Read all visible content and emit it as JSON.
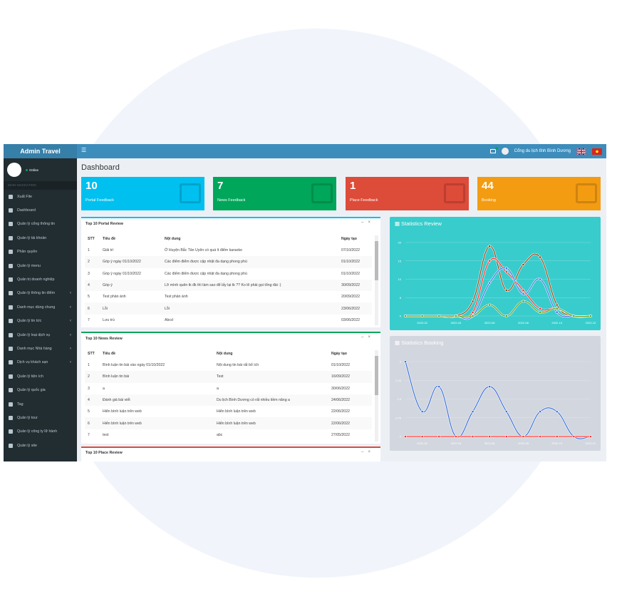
{
  "header": {
    "app_title": "Admin Travel",
    "user_name": "Cổng du lịch tỉnh Bình Dương",
    "menu_icon": "hamburger-icon",
    "mail_icon": "envelope-icon",
    "flags": [
      "uk-flag",
      "vn-flag"
    ]
  },
  "sidebar": {
    "status": "Online",
    "nav_header": "MAIN NAVIGATION",
    "items": [
      {
        "label": "Xuất File",
        "icon": "export-icon",
        "has_children": false
      },
      {
        "label": "Dashboard",
        "icon": "home-icon",
        "has_children": false
      },
      {
        "label": "Quản lý cổng thông tin",
        "icon": "magnet-icon",
        "has_children": false
      },
      {
        "label": "Quản lý tài khoản",
        "icon": "users-icon",
        "has_children": false
      },
      {
        "label": "Phân quyền",
        "icon": "sitemap-icon",
        "has_children": false
      },
      {
        "label": "Quản lý menu",
        "icon": "pie-icon",
        "has_children": false
      },
      {
        "label": "Quản trị doanh nghiệp",
        "icon": "building-icon",
        "has_children": false
      },
      {
        "label": "Quản lý thông tin điểm",
        "icon": "map-icon",
        "has_children": true
      },
      {
        "label": "Danh mục dùng chung",
        "icon": "cubes-icon",
        "has_children": true
      },
      {
        "label": "Quản lý tin tức",
        "icon": "news-icon",
        "has_children": true
      },
      {
        "label": "Quản lý loại dịch vụ",
        "icon": "cubes-icon",
        "has_children": true
      },
      {
        "label": "Danh mục Nhà hàng",
        "icon": "cubes-icon",
        "has_children": true
      },
      {
        "label": "Dịch vụ khách sạn",
        "icon": "hotel-icon",
        "has_children": true
      },
      {
        "label": "Quản lý tiện ích",
        "icon": "list-icon",
        "has_children": false
      },
      {
        "label": "Quản lý quốc gia",
        "icon": "plane-icon",
        "has_children": false
      },
      {
        "label": "Tag",
        "icon": "tag-icon",
        "has_children": false
      },
      {
        "label": "Quản lý tour",
        "icon": "bus-icon",
        "has_children": false
      },
      {
        "label": "Quản lý công ty lữ hành",
        "icon": "building-icon",
        "has_children": false
      },
      {
        "label": "Quản lý site",
        "icon": "globe-icon",
        "has_children": false
      }
    ]
  },
  "page_title": "Dashboard",
  "cards": [
    {
      "value": "10",
      "label": "Portal Feedback",
      "color": "#00c0ef",
      "icon": "comment-icon"
    },
    {
      "value": "7",
      "label": "News Feedback",
      "color": "#00a65a",
      "icon": "newspaper-icon"
    },
    {
      "value": "1",
      "label": "Place Feedback",
      "color": "#dd4b39",
      "icon": "map-marker-icon"
    },
    {
      "value": "44",
      "label": "Booking",
      "color": "#f39c12",
      "icon": "credit-card-icon"
    }
  ],
  "portal_review": {
    "title": "Top 10 Portal Review",
    "columns": [
      "STT",
      "Tiêu đề",
      "Nội dung",
      "Ngày tạo"
    ],
    "rows": [
      [
        "1",
        "Giải trí",
        "Ở Huyện Bắc Tân Uyên có quá ít điểm karaoke",
        "07/10/2022"
      ],
      [
        "2",
        "Góp ý ngày 01/10/2022",
        "Các điểm điểm được cập nhật đa dạng phong phú",
        "01/10/2022"
      ],
      [
        "3",
        "Góp ý ngày 01/10/2022",
        "Các điểm điểm được cập nhật đa dạng phong phú",
        "01/10/2022"
      ],
      [
        "4",
        "Góp ý",
        "Lỡ mình quên tk đk thì làm sao để lấy lại tk ?? Ko lẽ phải gọi tổng đài :)",
        "30/09/2022"
      ],
      [
        "5",
        "Test phản ánh",
        "Test phản ánh",
        "20/09/2022"
      ],
      [
        "6",
        "Lỗi",
        "Lỗi",
        "23/06/2022"
      ],
      [
        "7",
        "Lưu trú",
        "Abcd",
        "03/06/2022"
      ]
    ]
  },
  "news_review": {
    "title": "Top 10 News Review",
    "columns": [
      "STT",
      "Tiêu đề",
      "Nội dung",
      "Ngày tạo"
    ],
    "rows": [
      [
        "1",
        "Bình luận tin bài vào ngày 01/10/2022",
        "Nội dung tin bài rất bổ ích",
        "01/10/2022"
      ],
      [
        "2",
        "Bình luận tin bài",
        "Test",
        "16/09/2022"
      ],
      [
        "3",
        "a",
        "a",
        "30/06/2022"
      ],
      [
        "4",
        "Đánh giá bài viết",
        "Du lịch Bình Dương có rất nhiều tiềm năng a",
        "24/06/2022"
      ],
      [
        "5",
        "Hiển bình luận trên web",
        "Hiển bình luận trên web",
        "22/06/2022"
      ],
      [
        "6",
        "Hiển bình luận trên web",
        "Hiển bình luận trên web",
        "22/06/2022"
      ],
      [
        "7",
        "test",
        "abc",
        "27/05/2022"
      ]
    ]
  },
  "place_review": {
    "title": "Top 10 Place Review"
  },
  "chart_data": [
    {
      "type": "line",
      "title": "Statistics Review",
      "background": "#39cccc",
      "x": [
        "2022-01",
        "2022-02",
        "2022-03",
        "2022-04",
        "2022-05",
        "2022-06",
        "2022-07",
        "2022-08",
        "2022-09",
        "2022-10",
        "2022-11",
        "2022-12"
      ],
      "xticks": [
        "2022-02",
        "2022-04",
        "2022-06",
        "2022-08",
        "2022-10",
        "2022-12"
      ],
      "ylim": [
        0,
        20
      ],
      "yticks": [
        0,
        5,
        10,
        15,
        20
      ],
      "grid": true,
      "series": [
        {
          "color": "#8b4513",
          "values": [
            0,
            0,
            0,
            0,
            4,
            19,
            7,
            14,
            16,
            3,
            0,
            0
          ]
        },
        {
          "color": "#ff2a2a",
          "values": [
            0,
            0,
            0,
            0,
            1,
            15,
            12,
            7,
            2,
            2,
            0,
            0
          ]
        },
        {
          "color": "#3a6fe0",
          "values": [
            0,
            0,
            0,
            0,
            0,
            9,
            13,
            6,
            10,
            1,
            0,
            0
          ]
        },
        {
          "color": "#5a9a10",
          "values": [
            0,
            0,
            0,
            0,
            0,
            3,
            0,
            4,
            1,
            2,
            0,
            0
          ]
        }
      ]
    },
    {
      "type": "line",
      "title": "Statistics Booking",
      "background": "#d2d6de",
      "x": [
        "2022-01",
        "2022-02",
        "2022-03",
        "2022-04",
        "2022-05",
        "2022-06",
        "2022-07",
        "2022-08",
        "2022-09",
        "2022-10",
        "2022-11",
        "2022-12"
      ],
      "xticks": [
        "2022-02",
        "2022-04",
        "2022-06",
        "2022-08",
        "2022-10",
        "2022-12"
      ],
      "ylim": [
        0,
        3
      ],
      "yticks": [
        "0",
        "0.75",
        "1.5",
        "2.25",
        "3"
      ],
      "grid": true,
      "series": [
        {
          "color": "#3a6fd8",
          "values": [
            3,
            1,
            2,
            0,
            1,
            2,
            1,
            0,
            1,
            1,
            0,
            0
          ]
        },
        {
          "color": "#ff3030",
          "values": [
            0,
            0,
            0,
            0,
            0,
            0,
            0,
            0,
            0,
            0,
            0,
            0
          ]
        }
      ]
    }
  ]
}
